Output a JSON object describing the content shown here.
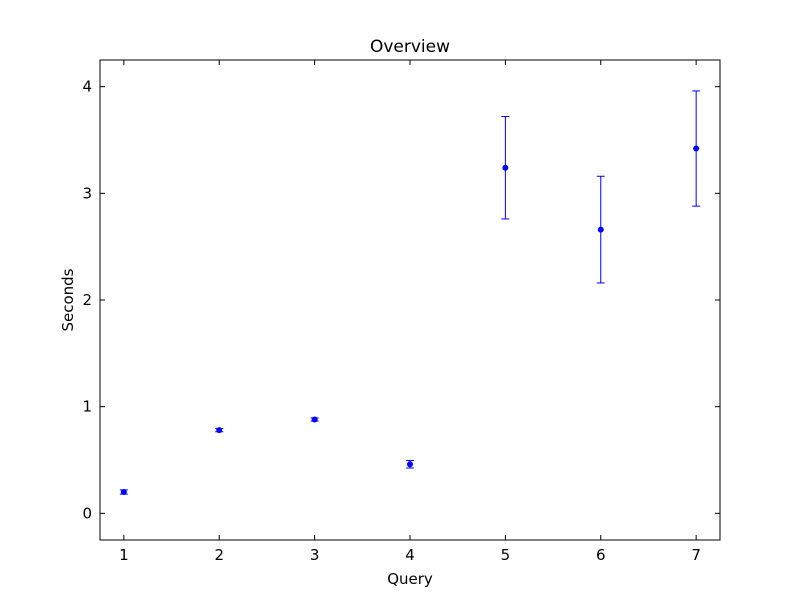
{
  "chart_data": {
    "type": "scatter",
    "title": "Overview",
    "xlabel": "Query",
    "ylabel": "Seconds",
    "xlim": [
      0.75,
      7.25
    ],
    "ylim": [
      -0.25,
      4.25
    ],
    "xticks": [
      1,
      2,
      3,
      4,
      5,
      6,
      7
    ],
    "yticks": [
      0,
      1,
      2,
      3,
      4
    ],
    "grid": false,
    "color": "#0000ff",
    "series": [
      {
        "x": [
          1,
          2,
          3,
          4,
          5,
          6,
          7
        ],
        "y": [
          0.2,
          0.78,
          0.88,
          0.46,
          3.24,
          2.66,
          3.42
        ],
        "yerr": [
          0.02,
          0.015,
          0.015,
          0.035,
          0.48,
          0.5,
          0.54
        ]
      }
    ]
  }
}
